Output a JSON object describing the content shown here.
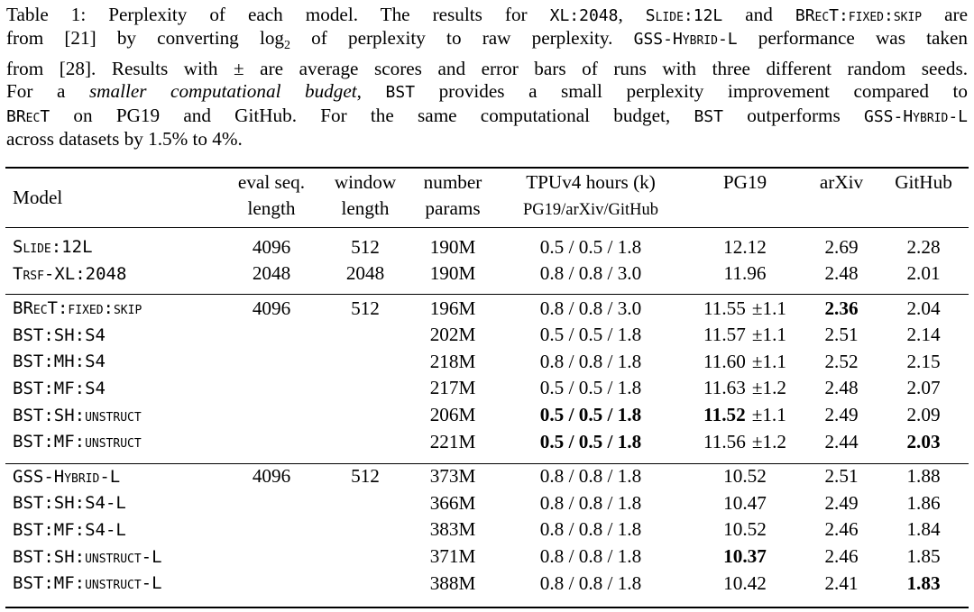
{
  "caption": {
    "line1_a": "Table 1: Perplexity of each model. The results for ",
    "line1_xl": "XL:2048",
    "line1_b": ", ",
    "line1_slide": "Slide:12L",
    "line1_c": " and ",
    "line1_brect": "BRecT:fixed:skip",
    "line1_d": " are",
    "line2_a": "from [21] by converting ",
    "line2_log": "log",
    "line2_sub": "2",
    "line2_b": " of perplexity to raw perplexity. ",
    "line2_gss": "GSS-Hybrid-L",
    "line2_c": " performance was taken",
    "line3": "from [28]. Results with ± are average scores and error bars of runs with three different random seeds.",
    "line4_a": "For a ",
    "line4_em": "smaller computational budget",
    "line4_b": ", ",
    "line4_bst": "BST",
    "line4_c": " provides a small perplexity improvement compared to",
    "line5_brect": "BRecT",
    "line5_a": " on PG19 and GitHub. For the same computational budget, ",
    "line5_bst": "BST",
    "line5_b": " outperforms ",
    "line5_gss": "GSS-Hybrid-L",
    "line6": "across datasets by 1.5% to 4%."
  },
  "table": {
    "headers": {
      "model": "Model",
      "eval_1": "eval seq.",
      "eval_2": "length",
      "window_1": "window",
      "window_2": "length",
      "number_1": "number",
      "number_2": "params",
      "tpu_1": "TPUv4 hours (k)",
      "tpu_2": "PG19/arXiv/GitHub",
      "pg19": "PG19",
      "arxiv": "arXiv",
      "github": "GitHub"
    },
    "rows": [
      {
        "model": "Slide:12L",
        "eval": "4096",
        "window": "512",
        "params": "190M",
        "tpu": "0.5 / 0.5 / 1.8",
        "pg19": "12.12",
        "pg19_err": "",
        "arxiv": "2.69",
        "github": "2.28"
      },
      {
        "model": "Trsf-XL:2048",
        "eval": "2048",
        "window": "2048",
        "params": "190M",
        "tpu": "0.8 / 0.8 / 3.0",
        "pg19": "11.96",
        "pg19_err": "",
        "arxiv": "2.48",
        "github": "2.01"
      },
      {
        "model": "BRecT:fixed:skip",
        "eval": "4096",
        "window": "512",
        "params": "196M",
        "tpu": "0.8 / 0.8 / 3.0",
        "pg19": "11.55",
        "pg19_err": "±1.1",
        "arxiv": "2.36",
        "github": "2.04"
      },
      {
        "model": "BST:SH:S4",
        "eval": "",
        "window": "",
        "params": "202M",
        "tpu": "0.5 / 0.5 / 1.8",
        "pg19": "11.57",
        "pg19_err": "±1.1",
        "arxiv": "2.51",
        "github": "2.14"
      },
      {
        "model": "BST:MH:S4",
        "eval": "",
        "window": "",
        "params": "218M",
        "tpu": "0.8 / 0.8 / 1.8",
        "pg19": "11.60",
        "pg19_err": "±1.1",
        "arxiv": "2.52",
        "github": "2.15"
      },
      {
        "model": "BST:MF:S4",
        "eval": "",
        "window": "",
        "params": "217M",
        "tpu": "0.5 / 0.5 / 1.8",
        "pg19": "11.63",
        "pg19_err": "±1.2",
        "arxiv": "2.48",
        "github": "2.07"
      },
      {
        "model": "BST:SH:unstruct",
        "eval": "",
        "window": "",
        "params": "206M",
        "tpu": "0.5 / 0.5 / 1.8",
        "pg19": "11.52",
        "pg19_err": "±1.1",
        "arxiv": "2.49",
        "github": "2.09"
      },
      {
        "model": "BST:MF:unstruct",
        "eval": "",
        "window": "",
        "params": "221M",
        "tpu": "0.5 / 0.5 / 1.8",
        "pg19": "11.56",
        "pg19_err": "±1.2",
        "arxiv": "2.44",
        "github": "2.03"
      },
      {
        "model": "GSS-Hybrid-L",
        "eval": "4096",
        "window": "512",
        "params": "373M",
        "tpu": "0.8 / 0.8 / 1.8",
        "pg19": "10.52",
        "pg19_err": "",
        "arxiv": "2.51",
        "github": "1.88"
      },
      {
        "model": "BST:SH:S4-L",
        "eval": "",
        "window": "",
        "params": "366M",
        "tpu": "0.8 / 0.8 / 1.8",
        "pg19": "10.47",
        "pg19_err": "",
        "arxiv": "2.49",
        "github": "1.86"
      },
      {
        "model": "BST:MF:S4-L",
        "eval": "",
        "window": "",
        "params": "383M",
        "tpu": "0.8 / 0.8 / 1.8",
        "pg19": "10.52",
        "pg19_err": "",
        "arxiv": "2.46",
        "github": "1.84"
      },
      {
        "model": "BST:SH:unstruct-L",
        "eval": "",
        "window": "",
        "params": "371M",
        "tpu": "0.8 / 0.8 / 1.8",
        "pg19": "10.37",
        "pg19_err": "",
        "arxiv": "2.46",
        "github": "1.85"
      },
      {
        "model": "BST:MF:unstruct-L",
        "eval": "",
        "window": "",
        "params": "388M",
        "tpu": "0.8 / 0.8 / 1.8",
        "pg19": "10.42",
        "pg19_err": "",
        "arxiv": "2.41",
        "github": "1.83"
      }
    ]
  }
}
